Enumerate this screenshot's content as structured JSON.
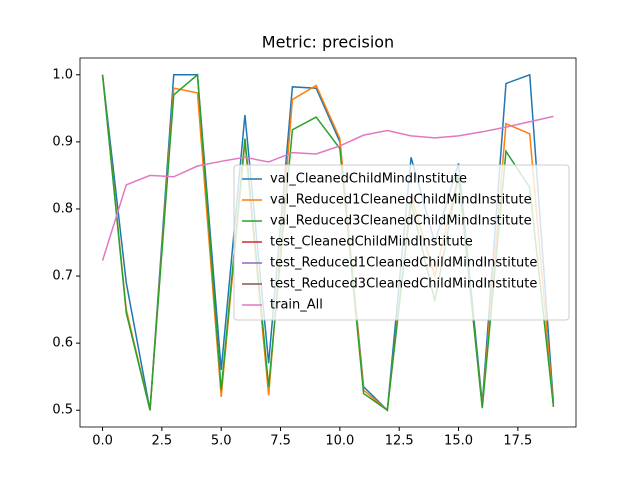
{
  "chart_data": {
    "type": "line",
    "title": "Metric: precision",
    "x": [
      0,
      1,
      2,
      3,
      4,
      5,
      6,
      7,
      8,
      9,
      10,
      11,
      12,
      13,
      14,
      15,
      16,
      17,
      18,
      19
    ],
    "series": [
      {
        "name": "val_CleanedChildMindInstitute",
        "color": "#1f77b4",
        "values": [
          1.0,
          0.69,
          0.5,
          1.0,
          1.0,
          0.56,
          0.94,
          0.57,
          0.982,
          0.98,
          0.9,
          0.535,
          0.5,
          0.877,
          0.75,
          0.868,
          0.51,
          0.987,
          1.0,
          0.51
        ]
      },
      {
        "name": "val_Reduced1CleanedChildMindInstitute",
        "color": "#ff7f0e",
        "values": [
          1.0,
          0.65,
          0.5,
          0.98,
          0.973,
          0.52,
          0.9,
          0.522,
          0.963,
          0.984,
          0.905,
          0.53,
          0.5,
          0.82,
          0.7,
          0.85,
          0.505,
          0.927,
          0.912,
          0.505
        ]
      },
      {
        "name": "val_Reduced3CleanedChildMindInstitute",
        "color": "#2ca02c",
        "values": [
          1.0,
          0.645,
          0.5,
          0.97,
          1.0,
          0.53,
          0.905,
          0.535,
          0.918,
          0.937,
          0.89,
          0.525,
          0.5,
          0.81,
          0.663,
          0.85,
          0.503,
          0.886,
          0.832,
          0.505
        ]
      },
      {
        "name": "test_CleanedChildMindInstitute",
        "color": "#d62728",
        "values": [
          null,
          null,
          null,
          null,
          null,
          null,
          null,
          null,
          null,
          null,
          null,
          null,
          null,
          null,
          null,
          null,
          null,
          null,
          null,
          null
        ]
      },
      {
        "name": "test_Reduced1CleanedChildMindInstitute",
        "color": "#9467bd",
        "values": [
          null,
          null,
          null,
          null,
          null,
          null,
          null,
          null,
          null,
          null,
          null,
          null,
          null,
          null,
          null,
          null,
          null,
          null,
          null,
          null
        ]
      },
      {
        "name": "test_Reduced3CleanedChildMindInstitute",
        "color": "#8c564b",
        "values": [
          null,
          null,
          null,
          null,
          null,
          null,
          null,
          null,
          null,
          null,
          null,
          null,
          null,
          null,
          null,
          null,
          null,
          null,
          null,
          null
        ]
      },
      {
        "name": "train_All",
        "color": "#e377c2",
        "values": [
          0.723,
          0.836,
          0.85,
          0.848,
          0.864,
          0.871,
          0.877,
          0.87,
          0.884,
          0.882,
          0.894,
          0.91,
          0.917,
          0.909,
          0.906,
          0.909,
          0.915,
          0.922,
          0.93,
          0.938
        ]
      }
    ],
    "xlim": [
      -0.95,
      19.95
    ],
    "xticks": [
      {
        "value": 0,
        "label": "0.0"
      },
      2.5,
      {
        "value": 5,
        "label": "5.0"
      },
      7.5,
      {
        "value": 10,
        "label": "10.0"
      },
      12.5,
      {
        "value": 15,
        "label": "15.0"
      },
      17.5
    ],
    "ylim": [
      0.475,
      1.025
    ],
    "yticks": [
      0.5,
      0.6,
      0.7,
      0.8,
      0.9,
      {
        "value": 1,
        "label": "1.0"
      }
    ],
    "legend": "center right"
  }
}
